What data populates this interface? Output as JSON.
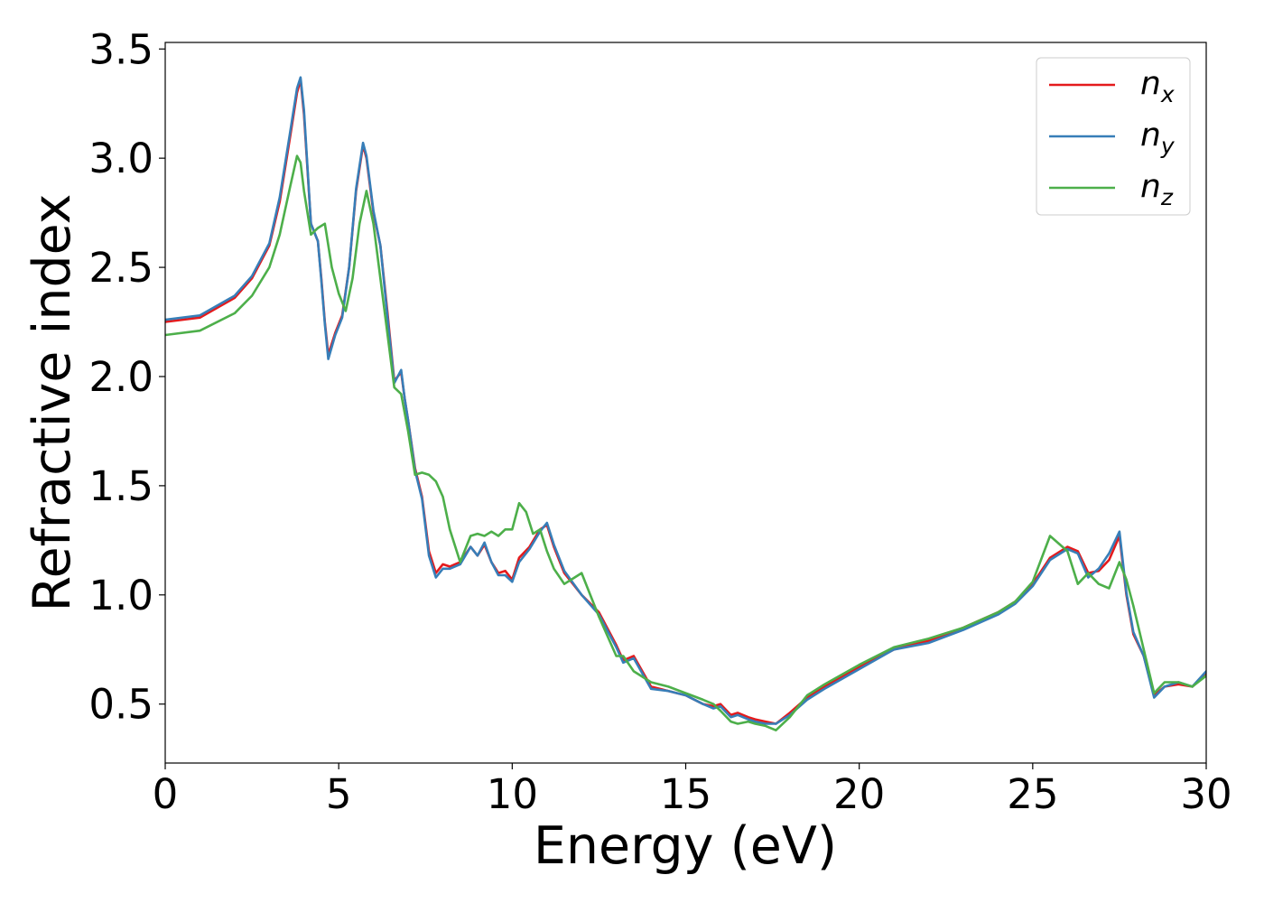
{
  "chart_data": {
    "type": "line",
    "title": "",
    "xlabel": "Energy (eV)",
    "ylabel": "Refractive index",
    "xlim": [
      0,
      30
    ],
    "ylim": [
      0.23,
      3.53
    ],
    "xticks": [
      0,
      5,
      10,
      15,
      20,
      25,
      30
    ],
    "xtick_labels": [
      "0",
      "5",
      "10",
      "15",
      "20",
      "25",
      "30"
    ],
    "yticks": [
      0.5,
      1.0,
      1.5,
      2.0,
      2.5,
      3.0,
      3.5
    ],
    "ytick_labels": [
      "0.5",
      "1.0",
      "1.5",
      "2.0",
      "2.5",
      "3.0",
      "3.5"
    ],
    "grid": false,
    "legend_position": "top-right",
    "series": [
      {
        "name": "n_x",
        "label_main": "n",
        "label_sub": "x",
        "color": "#e41a1c",
        "x": [
          0,
          1,
          2,
          2.5,
          3,
          3.3,
          3.6,
          3.8,
          3.9,
          4.0,
          4.2,
          4.4,
          4.5,
          4.6,
          4.7,
          4.9,
          5.1,
          5.3,
          5.5,
          5.7,
          5.8,
          6.0,
          6.2,
          6.4,
          6.6,
          6.8,
          6.9,
          7.0,
          7.2,
          7.4,
          7.6,
          7.8,
          8.0,
          8.2,
          8.5,
          8.8,
          9.0,
          9.2,
          9.4,
          9.6,
          9.8,
          10.0,
          10.2,
          10.5,
          10.8,
          11.0,
          11.2,
          11.5,
          12.0,
          12.5,
          13.0,
          13.2,
          13.5,
          14.0,
          14.5,
          15.0,
          15.5,
          15.8,
          16.0,
          16.3,
          16.5,
          16.8,
          17.0,
          17.3,
          17.6,
          18.0,
          18.5,
          19.0,
          20.0,
          21.0,
          22.0,
          23.0,
          24.0,
          24.5,
          25.0,
          25.5,
          26.0,
          26.3,
          26.6,
          26.9,
          27.2,
          27.5,
          27.7,
          27.9,
          28.2,
          28.5,
          28.8,
          29.2,
          29.6,
          30.0
        ],
        "y": [
          2.25,
          2.27,
          2.36,
          2.45,
          2.6,
          2.8,
          3.1,
          3.3,
          3.36,
          3.2,
          2.7,
          2.62,
          2.45,
          2.25,
          2.1,
          2.2,
          2.28,
          2.5,
          2.85,
          3.06,
          3.0,
          2.75,
          2.6,
          2.3,
          1.98,
          2.02,
          1.9,
          1.8,
          1.58,
          1.45,
          1.2,
          1.1,
          1.14,
          1.13,
          1.15,
          1.22,
          1.18,
          1.23,
          1.15,
          1.1,
          1.11,
          1.07,
          1.17,
          1.22,
          1.3,
          1.32,
          1.22,
          1.1,
          1.0,
          0.92,
          0.77,
          0.7,
          0.72,
          0.58,
          0.56,
          0.54,
          0.5,
          0.49,
          0.5,
          0.45,
          0.46,
          0.44,
          0.43,
          0.42,
          0.41,
          0.46,
          0.53,
          0.58,
          0.67,
          0.75,
          0.79,
          0.85,
          0.92,
          0.97,
          1.05,
          1.17,
          1.22,
          1.2,
          1.1,
          1.11,
          1.16,
          1.27,
          1.0,
          0.82,
          0.72,
          0.54,
          0.58,
          0.59,
          0.58,
          0.64
        ]
      },
      {
        "name": "n_y",
        "label_main": "n",
        "label_sub": "y",
        "color": "#377eb8",
        "x": [
          0,
          1,
          2,
          2.5,
          3,
          3.3,
          3.6,
          3.8,
          3.9,
          4.0,
          4.2,
          4.4,
          4.5,
          4.6,
          4.7,
          4.9,
          5.1,
          5.3,
          5.5,
          5.7,
          5.8,
          6.0,
          6.2,
          6.4,
          6.6,
          6.8,
          6.9,
          7.0,
          7.2,
          7.4,
          7.6,
          7.8,
          8.0,
          8.2,
          8.5,
          8.8,
          9.0,
          9.2,
          9.4,
          9.6,
          9.8,
          10.0,
          10.2,
          10.5,
          10.8,
          11.0,
          11.2,
          11.5,
          12.0,
          12.5,
          13.0,
          13.2,
          13.5,
          14.0,
          14.5,
          15.0,
          15.5,
          15.8,
          16.0,
          16.3,
          16.5,
          16.8,
          17.0,
          17.3,
          17.6,
          18.0,
          18.5,
          19.0,
          20.0,
          21.0,
          22.0,
          23.0,
          24.0,
          24.5,
          25.0,
          25.5,
          26.0,
          26.3,
          26.6,
          26.9,
          27.2,
          27.5,
          27.7,
          27.9,
          28.2,
          28.5,
          28.8,
          29.2,
          29.6,
          30.0
        ],
        "y": [
          2.26,
          2.28,
          2.37,
          2.46,
          2.61,
          2.82,
          3.12,
          3.32,
          3.37,
          3.22,
          2.7,
          2.62,
          2.44,
          2.24,
          2.08,
          2.19,
          2.27,
          2.5,
          2.86,
          3.07,
          3.01,
          2.76,
          2.6,
          2.28,
          1.97,
          2.03,
          1.9,
          1.8,
          1.57,
          1.44,
          1.18,
          1.08,
          1.12,
          1.12,
          1.14,
          1.22,
          1.18,
          1.24,
          1.15,
          1.09,
          1.09,
          1.06,
          1.15,
          1.21,
          1.29,
          1.33,
          1.23,
          1.11,
          1.0,
          0.91,
          0.76,
          0.69,
          0.71,
          0.57,
          0.56,
          0.54,
          0.5,
          0.48,
          0.49,
          0.44,
          0.45,
          0.43,
          0.42,
          0.41,
          0.41,
          0.45,
          0.52,
          0.57,
          0.66,
          0.75,
          0.78,
          0.84,
          0.91,
          0.96,
          1.04,
          1.16,
          1.21,
          1.19,
          1.08,
          1.12,
          1.19,
          1.29,
          1.01,
          0.83,
          0.72,
          0.53,
          0.58,
          0.6,
          0.58,
          0.65
        ]
      },
      {
        "name": "n_z",
        "label_main": "n",
        "label_sub": "z",
        "color": "#4daf4a",
        "x": [
          0,
          1,
          2,
          2.5,
          3,
          3.3,
          3.6,
          3.8,
          3.9,
          4.0,
          4.2,
          4.4,
          4.6,
          4.8,
          5.0,
          5.2,
          5.4,
          5.6,
          5.8,
          6.0,
          6.2,
          6.4,
          6.6,
          6.8,
          7.0,
          7.2,
          7.4,
          7.6,
          7.8,
          8.0,
          8.2,
          8.5,
          8.8,
          9.0,
          9.2,
          9.4,
          9.6,
          9.8,
          10.0,
          10.2,
          10.4,
          10.6,
          10.8,
          11.0,
          11.2,
          11.5,
          11.8,
          12.0,
          12.5,
          13.0,
          13.2,
          13.5,
          14.0,
          14.5,
          15.0,
          15.5,
          15.8,
          16.0,
          16.3,
          16.5,
          16.8,
          17.0,
          17.3,
          17.6,
          18.0,
          18.5,
          19.0,
          20.0,
          21.0,
          22.0,
          23.0,
          24.0,
          24.5,
          25.0,
          25.5,
          26.0,
          26.3,
          26.6,
          26.9,
          27.2,
          27.5,
          27.7,
          27.9,
          28.2,
          28.5,
          28.8,
          29.2,
          29.6,
          30.0
        ],
        "y": [
          2.19,
          2.21,
          2.29,
          2.37,
          2.5,
          2.65,
          2.87,
          3.01,
          2.98,
          2.85,
          2.65,
          2.68,
          2.7,
          2.5,
          2.38,
          2.3,
          2.45,
          2.7,
          2.85,
          2.7,
          2.45,
          2.2,
          1.95,
          1.92,
          1.75,
          1.55,
          1.56,
          1.55,
          1.52,
          1.45,
          1.3,
          1.15,
          1.27,
          1.28,
          1.27,
          1.29,
          1.27,
          1.3,
          1.3,
          1.42,
          1.38,
          1.28,
          1.3,
          1.2,
          1.12,
          1.05,
          1.08,
          1.1,
          0.9,
          0.72,
          0.72,
          0.65,
          0.6,
          0.58,
          0.55,
          0.52,
          0.5,
          0.47,
          0.42,
          0.41,
          0.42,
          0.41,
          0.4,
          0.38,
          0.44,
          0.54,
          0.59,
          0.68,
          0.76,
          0.8,
          0.85,
          0.92,
          0.97,
          1.06,
          1.27,
          1.2,
          1.05,
          1.1,
          1.05,
          1.03,
          1.15,
          1.07,
          0.95,
          0.75,
          0.55,
          0.6,
          0.6,
          0.58,
          0.63
        ]
      }
    ]
  }
}
